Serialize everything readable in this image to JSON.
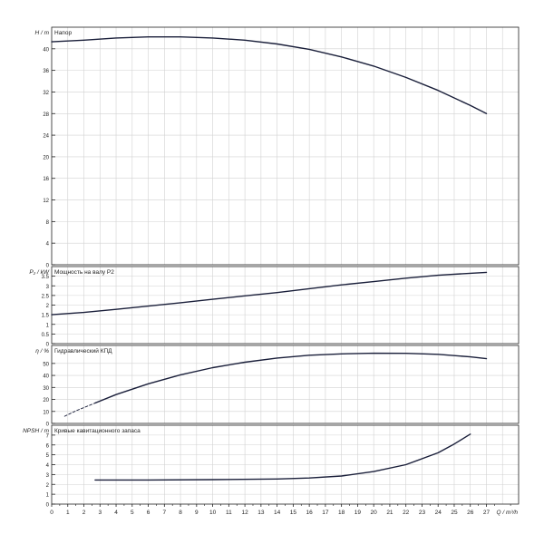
{
  "chart_data": [
    {
      "type": "line",
      "title": "Напор",
      "ylabel": "H / m",
      "ylim": [
        0,
        44
      ],
      "yticks": [
        "0",
        "4",
        "8",
        "12",
        "16",
        "20",
        "24",
        "28",
        "32",
        "36",
        "40"
      ],
      "series": [
        {
          "style": "solid",
          "x": [
            0,
            2,
            4,
            6,
            8,
            10,
            12,
            14,
            16,
            18,
            20,
            22,
            24,
            26,
            27
          ],
          "y": [
            41.3,
            41.6,
            42.0,
            42.2,
            42.2,
            42.0,
            41.6,
            40.9,
            39.9,
            38.5,
            36.8,
            34.7,
            32.3,
            29.5,
            28.0
          ]
        }
      ]
    },
    {
      "type": "line",
      "title": "Мощность на валу P2",
      "ylabel": "P₂ / kW",
      "ylim": [
        0,
        4
      ],
      "yticks": [
        "0",
        "0.5",
        "1",
        "1.5",
        "2",
        "2.5",
        "3",
        "3.5"
      ],
      "series": [
        {
          "style": "solid",
          "x": [
            0,
            2,
            4,
            6,
            8,
            10,
            12,
            14,
            16,
            18,
            20,
            22,
            24,
            26,
            27
          ],
          "y": [
            1.5,
            1.62,
            1.78,
            1.95,
            2.12,
            2.3,
            2.48,
            2.65,
            2.85,
            3.05,
            3.22,
            3.4,
            3.55,
            3.65,
            3.7
          ]
        }
      ]
    },
    {
      "type": "line",
      "title": "Гидравлический КПД",
      "ylabel": "η / %",
      "ylim": [
        0,
        65
      ],
      "yticks": [
        "0",
        "10",
        "20",
        "30",
        "40",
        "50"
      ],
      "series": [
        {
          "style": "dashed",
          "x": [
            0.8,
            1.6,
            2.7
          ],
          "y": [
            6,
            11,
            17
          ]
        },
        {
          "style": "solid",
          "x": [
            2.7,
            4,
            6,
            8,
            10,
            12,
            14,
            16,
            18,
            20,
            22,
            24,
            26,
            27
          ],
          "y": [
            17,
            24,
            33,
            40.5,
            46.5,
            51,
            54.5,
            56.8,
            58,
            58.5,
            58.4,
            57.6,
            55.5,
            54
          ]
        }
      ]
    },
    {
      "type": "line",
      "title": "Кривые кавитационного запаса",
      "ylabel": "NPSH / m",
      "ylim": [
        0,
        8
      ],
      "yticks": [
        "0",
        "1",
        "2",
        "3",
        "4",
        "5",
        "6",
        "7"
      ],
      "series": [
        {
          "style": "solid",
          "x": [
            2.7,
            6,
            10,
            14,
            16,
            18,
            20,
            22,
            24,
            25,
            26
          ],
          "y": [
            2.45,
            2.45,
            2.48,
            2.55,
            2.65,
            2.85,
            3.3,
            4.0,
            5.2,
            6.1,
            7.1
          ]
        }
      ]
    }
  ],
  "xaxis": {
    "label": "Q / m³/h",
    "xlim": [
      0,
      29
    ],
    "ticks": [
      "0",
      "1",
      "2",
      "3",
      "4",
      "5",
      "6",
      "7",
      "8",
      "9",
      "10",
      "11",
      "12",
      "13",
      "14",
      "15",
      "16",
      "17",
      "18",
      "19",
      "20",
      "21",
      "22",
      "23",
      "24",
      "25",
      "26",
      "27"
    ]
  }
}
